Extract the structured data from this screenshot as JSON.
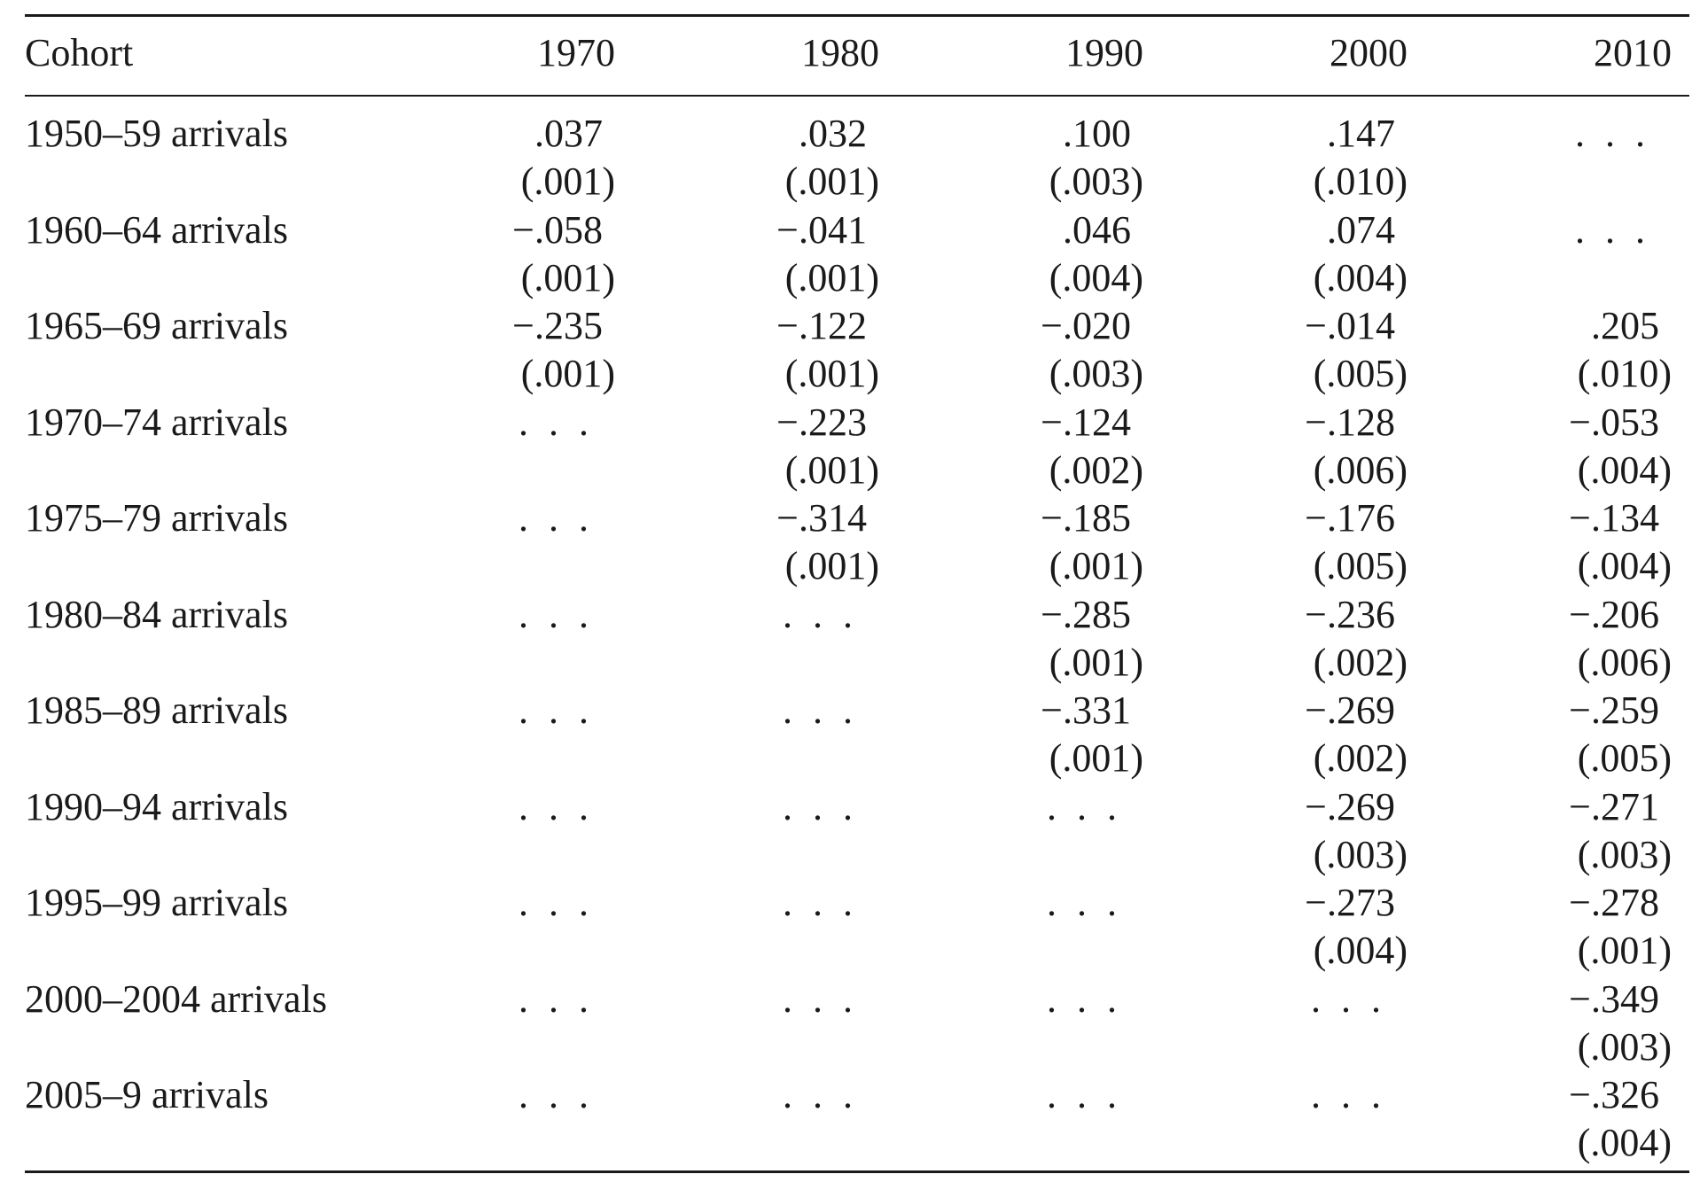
{
  "table": {
    "header": {
      "cohort_label": "Cohort",
      "years": [
        "1970",
        "1980",
        "1990",
        "2000",
        "2010"
      ]
    },
    "rows": [
      {
        "label": "1950–59 arrivals",
        "cells": [
          {
            "coef": ".037",
            "se": "(.001)"
          },
          {
            "coef": ".032",
            "se": "(.001)"
          },
          {
            "coef": ".100",
            "se": "(.003)"
          },
          {
            "coef": ".147",
            "se": "(.010)"
          },
          {
            "coef": ". . .",
            "se": ""
          }
        ]
      },
      {
        "label": "1960–64 arrivals",
        "cells": [
          {
            "coef": "−.058",
            "se": "(.001)"
          },
          {
            "coef": "−.041",
            "se": "(.001)"
          },
          {
            "coef": ".046",
            "se": "(.004)"
          },
          {
            "coef": ".074",
            "se": "(.004)"
          },
          {
            "coef": ". . .",
            "se": ""
          }
        ]
      },
      {
        "label": "1965–69 arrivals",
        "cells": [
          {
            "coef": "−.235",
            "se": "(.001)"
          },
          {
            "coef": "−.122",
            "se": "(.001)"
          },
          {
            "coef": "−.020",
            "se": "(.003)"
          },
          {
            "coef": "−.014",
            "se": "(.005)"
          },
          {
            "coef": ".205",
            "se": "(.010)"
          }
        ]
      },
      {
        "label": "1970–74 arrivals",
        "cells": [
          {
            "coef": ". . .",
            "se": ""
          },
          {
            "coef": "−.223",
            "se": "(.001)"
          },
          {
            "coef": "−.124",
            "se": "(.002)"
          },
          {
            "coef": "−.128",
            "se": "(.006)"
          },
          {
            "coef": "−.053",
            "se": "(.004)"
          }
        ]
      },
      {
        "label": "1975–79 arrivals",
        "cells": [
          {
            "coef": ". . .",
            "se": ""
          },
          {
            "coef": "−.314",
            "se": "(.001)"
          },
          {
            "coef": "−.185",
            "se": "(.001)"
          },
          {
            "coef": "−.176",
            "se": "(.005)"
          },
          {
            "coef": "−.134",
            "se": "(.004)"
          }
        ]
      },
      {
        "label": "1980–84 arrivals",
        "cells": [
          {
            "coef": ". . .",
            "se": ""
          },
          {
            "coef": ". . .",
            "se": ""
          },
          {
            "coef": "−.285",
            "se": "(.001)"
          },
          {
            "coef": "−.236",
            "se": "(.002)"
          },
          {
            "coef": "−.206",
            "se": "(.006)"
          }
        ]
      },
      {
        "label": "1985–89 arrivals",
        "cells": [
          {
            "coef": ". . .",
            "se": ""
          },
          {
            "coef": ". . .",
            "se": ""
          },
          {
            "coef": "−.331",
            "se": "(.001)"
          },
          {
            "coef": "−.269",
            "se": "(.002)"
          },
          {
            "coef": "−.259",
            "se": "(.005)"
          }
        ]
      },
      {
        "label": "1990–94 arrivals",
        "cells": [
          {
            "coef": ". . .",
            "se": ""
          },
          {
            "coef": ". . .",
            "se": ""
          },
          {
            "coef": ". . .",
            "se": ""
          },
          {
            "coef": "−.269",
            "se": "(.003)"
          },
          {
            "coef": "−.271",
            "se": "(.003)"
          }
        ]
      },
      {
        "label": "1995–99 arrivals",
        "cells": [
          {
            "coef": ". . .",
            "se": ""
          },
          {
            "coef": ". . .",
            "se": ""
          },
          {
            "coef": ". . .",
            "se": ""
          },
          {
            "coef": "−.273",
            "se": "(.004)"
          },
          {
            "coef": "−.278",
            "se": "(.001)"
          }
        ]
      },
      {
        "label": "2000–2004 arrivals",
        "cells": [
          {
            "coef": ". . .",
            "se": ""
          },
          {
            "coef": ". . .",
            "se": ""
          },
          {
            "coef": ". . .",
            "se": ""
          },
          {
            "coef": ". . .",
            "se": ""
          },
          {
            "coef": "−.349",
            "se": "(.003)"
          }
        ]
      },
      {
        "label": "2005–9 arrivals",
        "cells": [
          {
            "coef": ". . .",
            "se": ""
          },
          {
            "coef": ". . .",
            "se": ""
          },
          {
            "coef": ". . .",
            "se": ""
          },
          {
            "coef": ". . .",
            "se": ""
          },
          {
            "coef": "−.326",
            "se": "(.004)"
          }
        ]
      }
    ]
  }
}
